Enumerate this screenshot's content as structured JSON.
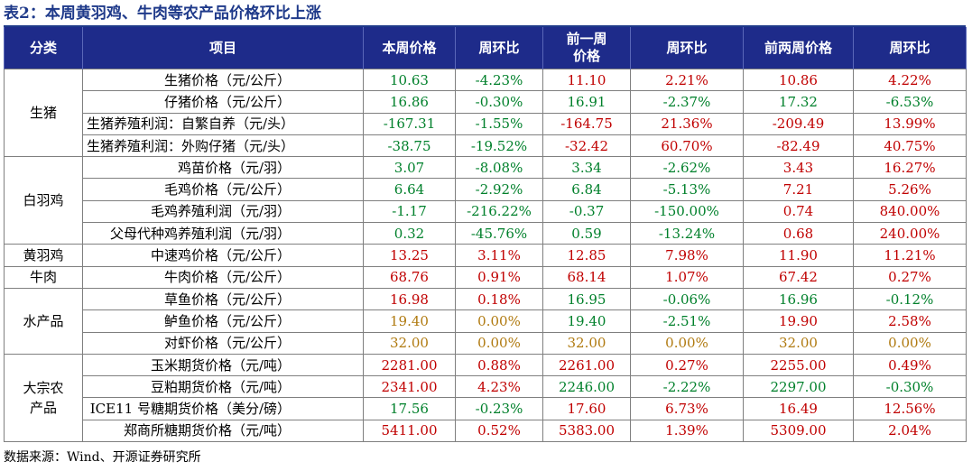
{
  "title": "表2：本周黄羽鸡、牛肉等农产品价格环比上涨",
  "headers": [
    "分类",
    "项目",
    "本周价格",
    "周环比",
    "前一周价格",
    "周环比",
    "前两周价格",
    "周环比"
  ],
  "colors": {
    "header_bg": "#1e2b8a",
    "title": "#1f3a8a",
    "red": "#c00000",
    "green": "#00802b",
    "orange": "#b07a10"
  },
  "groups": [
    {
      "category": "生猪",
      "rows": [
        {
          "item": "生猪价格（元/公斤）",
          "cells": [
            {
              "v": "10.63",
              "c": "green"
            },
            {
              "v": "-4.23%",
              "c": "green"
            },
            {
              "v": "11.10",
              "c": "red"
            },
            {
              "v": "2.21%",
              "c": "red"
            },
            {
              "v": "10.86",
              "c": "red"
            },
            {
              "v": "4.22%",
              "c": "red"
            }
          ]
        },
        {
          "item": "仔猪价格（元/公斤）",
          "cells": [
            {
              "v": "16.86",
              "c": "green"
            },
            {
              "v": "-0.30%",
              "c": "green"
            },
            {
              "v": "16.91",
              "c": "green"
            },
            {
              "v": "-2.37%",
              "c": "green"
            },
            {
              "v": "17.32",
              "c": "green"
            },
            {
              "v": "-6.53%",
              "c": "green"
            }
          ]
        },
        {
          "item": "生猪养殖利润：自繁自养（元/头）",
          "cells": [
            {
              "v": "-167.31",
              "c": "green"
            },
            {
              "v": "-1.55%",
              "c": "green"
            },
            {
              "v": "-164.75",
              "c": "red"
            },
            {
              "v": "21.36%",
              "c": "red"
            },
            {
              "v": "-209.49",
              "c": "red"
            },
            {
              "v": "13.99%",
              "c": "red"
            }
          ]
        },
        {
          "item": "生猪养殖利润：外购仔猪（元/头）",
          "cells": [
            {
              "v": "-38.75",
              "c": "green"
            },
            {
              "v": "-19.52%",
              "c": "green"
            },
            {
              "v": "-32.42",
              "c": "red"
            },
            {
              "v": "60.70%",
              "c": "red"
            },
            {
              "v": "-82.49",
              "c": "red"
            },
            {
              "v": "40.75%",
              "c": "red"
            }
          ]
        }
      ]
    },
    {
      "category": "白羽鸡",
      "rows": [
        {
          "item": "鸡苗价格（元/羽）",
          "cells": [
            {
              "v": "3.07",
              "c": "green"
            },
            {
              "v": "-8.08%",
              "c": "green"
            },
            {
              "v": "3.34",
              "c": "green"
            },
            {
              "v": "-2.62%",
              "c": "green"
            },
            {
              "v": "3.43",
              "c": "red"
            },
            {
              "v": "16.27%",
              "c": "red"
            }
          ]
        },
        {
          "item": "毛鸡价格（元/公斤）",
          "cells": [
            {
              "v": "6.64",
              "c": "green"
            },
            {
              "v": "-2.92%",
              "c": "green"
            },
            {
              "v": "6.84",
              "c": "green"
            },
            {
              "v": "-5.13%",
              "c": "green"
            },
            {
              "v": "7.21",
              "c": "red"
            },
            {
              "v": "5.26%",
              "c": "red"
            }
          ]
        },
        {
          "item": "毛鸡养殖利润（元/羽）",
          "cells": [
            {
              "v": "-1.17",
              "c": "green"
            },
            {
              "v": "-216.22%",
              "c": "green"
            },
            {
              "v": "-0.37",
              "c": "green"
            },
            {
              "v": "-150.00%",
              "c": "green"
            },
            {
              "v": "0.74",
              "c": "red"
            },
            {
              "v": "840.00%",
              "c": "red"
            }
          ]
        },
        {
          "item": "父母代种鸡养殖利润（元/羽）",
          "cells": [
            {
              "v": "0.32",
              "c": "green"
            },
            {
              "v": "-45.76%",
              "c": "green"
            },
            {
              "v": "0.59",
              "c": "green"
            },
            {
              "v": "-13.24%",
              "c": "green"
            },
            {
              "v": "0.68",
              "c": "red"
            },
            {
              "v": "240.00%",
              "c": "red"
            }
          ]
        }
      ]
    },
    {
      "category": "黄羽鸡",
      "rows": [
        {
          "item": "中速鸡价格（元/公斤）",
          "cells": [
            {
              "v": "13.25",
              "c": "red"
            },
            {
              "v": "3.11%",
              "c": "red"
            },
            {
              "v": "12.85",
              "c": "red"
            },
            {
              "v": "7.98%",
              "c": "red"
            },
            {
              "v": "11.90",
              "c": "red"
            },
            {
              "v": "11.21%",
              "c": "red"
            }
          ]
        }
      ]
    },
    {
      "category": "牛肉",
      "rows": [
        {
          "item": "牛肉价格（元/公斤）",
          "cells": [
            {
              "v": "68.76",
              "c": "red"
            },
            {
              "v": "0.91%",
              "c": "red"
            },
            {
              "v": "68.14",
              "c": "red"
            },
            {
              "v": "1.07%",
              "c": "red"
            },
            {
              "v": "67.42",
              "c": "red"
            },
            {
              "v": "0.27%",
              "c": "red"
            }
          ]
        }
      ]
    },
    {
      "category": "水产品",
      "rows": [
        {
          "item": "草鱼价格（元/公斤）",
          "cells": [
            {
              "v": "16.98",
              "c": "red"
            },
            {
              "v": "0.18%",
              "c": "red"
            },
            {
              "v": "16.95",
              "c": "green"
            },
            {
              "v": "-0.06%",
              "c": "green"
            },
            {
              "v": "16.96",
              "c": "green"
            },
            {
              "v": "-0.12%",
              "c": "green"
            }
          ]
        },
        {
          "item": "鲈鱼价格（元/公斤）",
          "cells": [
            {
              "v": "19.40",
              "c": "orange"
            },
            {
              "v": "0.00%",
              "c": "orange"
            },
            {
              "v": "19.40",
              "c": "green"
            },
            {
              "v": "-2.51%",
              "c": "green"
            },
            {
              "v": "19.90",
              "c": "red"
            },
            {
              "v": "2.58%",
              "c": "red"
            }
          ]
        },
        {
          "item": "对虾价格（元/公斤）",
          "cells": [
            {
              "v": "32.00",
              "c": "orange"
            },
            {
              "v": "0.00%",
              "c": "orange"
            },
            {
              "v": "32.00",
              "c": "orange"
            },
            {
              "v": "0.00%",
              "c": "orange"
            },
            {
              "v": "32.00",
              "c": "orange"
            },
            {
              "v": "0.00%",
              "c": "orange"
            }
          ]
        }
      ]
    },
    {
      "category": "大宗农产品",
      "rows": [
        {
          "item": "玉米期货价格（元/吨）",
          "cells": [
            {
              "v": "2281.00",
              "c": "red"
            },
            {
              "v": "0.88%",
              "c": "red"
            },
            {
              "v": "2261.00",
              "c": "red"
            },
            {
              "v": "0.27%",
              "c": "red"
            },
            {
              "v": "2255.00",
              "c": "red"
            },
            {
              "v": "0.49%",
              "c": "red"
            }
          ]
        },
        {
          "item": "豆粕期货价格（元/吨）",
          "cells": [
            {
              "v": "2341.00",
              "c": "red"
            },
            {
              "v": "4.23%",
              "c": "red"
            },
            {
              "v": "2246.00",
              "c": "green"
            },
            {
              "v": "-2.22%",
              "c": "green"
            },
            {
              "v": "2297.00",
              "c": "green"
            },
            {
              "v": "-0.30%",
              "c": "green"
            }
          ]
        },
        {
          "item": "ICE11 号糖期货价格（美分/磅）",
          "cells": [
            {
              "v": "17.56",
              "c": "green"
            },
            {
              "v": "-0.23%",
              "c": "green"
            },
            {
              "v": "17.60",
              "c": "red"
            },
            {
              "v": "6.73%",
              "c": "red"
            },
            {
              "v": "16.49",
              "c": "red"
            },
            {
              "v": "12.56%",
              "c": "red"
            }
          ]
        },
        {
          "item": "郑商所糖期货价格（元/吨）",
          "cells": [
            {
              "v": "5411.00",
              "c": "red"
            },
            {
              "v": "0.52%",
              "c": "red"
            },
            {
              "v": "5383.00",
              "c": "red"
            },
            {
              "v": "1.39%",
              "c": "red"
            },
            {
              "v": "5309.00",
              "c": "red"
            },
            {
              "v": "2.04%",
              "c": "red"
            }
          ]
        }
      ]
    }
  ],
  "source": "数据来源：Wind、开源证券研究所"
}
